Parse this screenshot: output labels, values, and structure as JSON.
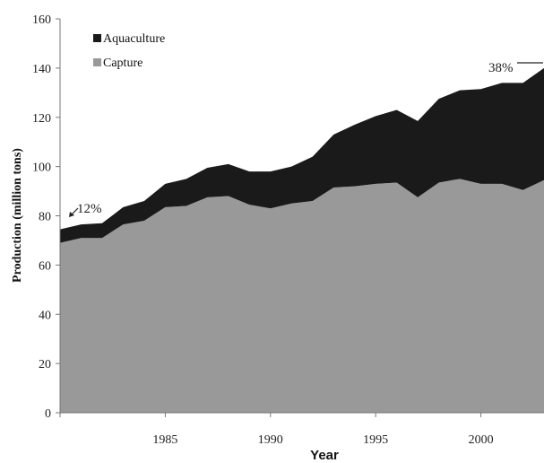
{
  "chart_data": {
    "type": "area",
    "stacked": true,
    "xlabel": "Year",
    "ylabel": "Production (million tons)",
    "xlim": [
      1980,
      2003
    ],
    "ylim": [
      0,
      160
    ],
    "x_ticks": [
      1985,
      1990,
      1995,
      2000
    ],
    "y_ticks": [
      0,
      20,
      40,
      60,
      80,
      100,
      120,
      140,
      160
    ],
    "legend_position": "top-left",
    "x": [
      1980,
      1981,
      1982,
      1983,
      1984,
      1985,
      1986,
      1987,
      1988,
      1989,
      1990,
      1991,
      1992,
      1993,
      1994,
      1995,
      1996,
      1997,
      1998,
      1999,
      2000,
      2001,
      2002,
      2003
    ],
    "series": [
      {
        "name": "Capture",
        "color": "#999999",
        "values": [
          69,
          71,
          71,
          76.5,
          78,
          83.5,
          84,
          87.5,
          88,
          84.5,
          83,
          85,
          86,
          91.5,
          92,
          93,
          93.5,
          87.5,
          93.5,
          95,
          93,
          93,
          90.5,
          94.5
        ]
      },
      {
        "name": "Aquaculture",
        "color": "#1a1a1a",
        "values": [
          5.5,
          5.5,
          6,
          7,
          8,
          9.5,
          11,
          12,
          13,
          13.5,
          15,
          15,
          18,
          21.5,
          25,
          27.5,
          29.5,
          31,
          34,
          36,
          38.5,
          41,
          43.5,
          45.5
        ]
      }
    ],
    "annotations": [
      {
        "text": "12%",
        "x": 1981,
        "y": 75
      },
      {
        "text": "38%",
        "x": 2003,
        "y": 140
      }
    ]
  }
}
